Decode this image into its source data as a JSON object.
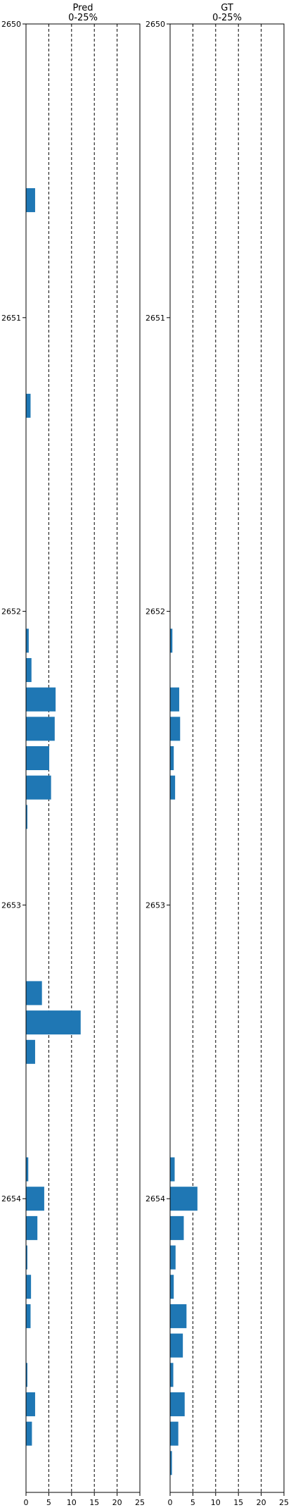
{
  "chart_data": [
    {
      "type": "bar",
      "orientation": "horizontal",
      "title": "Pred\n0-25%",
      "x_ticks": [
        0,
        5,
        10,
        15,
        20,
        25
      ],
      "xlim": [
        0,
        25
      ],
      "y_ticks": [
        2650,
        2651,
        2652,
        2653,
        2654
      ],
      "ylim": [
        2655,
        2650
      ],
      "grid": "vertical dashed lines at 5, 10, 15, 20",
      "bar_color": "#1f77b4",
      "bars": [
        {
          "depth": 2650.6,
          "value": 2.0
        },
        {
          "depth": 2651.3,
          "value": 1.0
        },
        {
          "depth": 2652.1,
          "value": 0.6
        },
        {
          "depth": 2652.2,
          "value": 1.2
        },
        {
          "depth": 2652.3,
          "value": 6.5
        },
        {
          "depth": 2652.4,
          "value": 6.3
        },
        {
          "depth": 2652.5,
          "value": 5.1
        },
        {
          "depth": 2652.6,
          "value": 5.5
        },
        {
          "depth": 2652.7,
          "value": 0.3
        },
        {
          "depth": 2653.3,
          "value": 3.5
        },
        {
          "depth": 2653.4,
          "value": 12.0
        },
        {
          "depth": 2653.5,
          "value": 2.0
        },
        {
          "depth": 2653.9,
          "value": 0.5
        },
        {
          "depth": 2654.0,
          "value": 4.0
        },
        {
          "depth": 2654.1,
          "value": 2.5
        },
        {
          "depth": 2654.2,
          "value": 0.3
        },
        {
          "depth": 2654.3,
          "value": 1.1
        },
        {
          "depth": 2654.4,
          "value": 1.0
        },
        {
          "depth": 2654.6,
          "value": 0.3
        },
        {
          "depth": 2654.7,
          "value": 2.0
        },
        {
          "depth": 2654.8,
          "value": 1.3
        }
      ]
    },
    {
      "type": "bar",
      "orientation": "horizontal",
      "title": "GT\n0-25%",
      "x_ticks": [
        0,
        5,
        10,
        15,
        20,
        25
      ],
      "xlim": [
        0,
        25
      ],
      "y_ticks": [
        2650,
        2651,
        2652,
        2653,
        2654
      ],
      "ylim": [
        2655,
        2650
      ],
      "grid": "vertical dashed lines at 5, 10, 15, 20",
      "bar_color": "#1f77b4",
      "bars": [
        {
          "depth": 2652.1,
          "value": 0.5
        },
        {
          "depth": 2652.3,
          "value": 2.0
        },
        {
          "depth": 2652.4,
          "value": 2.2
        },
        {
          "depth": 2652.5,
          "value": 0.8
        },
        {
          "depth": 2652.6,
          "value": 1.1
        },
        {
          "depth": 2653.9,
          "value": 1.0
        },
        {
          "depth": 2654.0,
          "value": 6.0
        },
        {
          "depth": 2654.1,
          "value": 3.0
        },
        {
          "depth": 2654.2,
          "value": 1.2
        },
        {
          "depth": 2654.3,
          "value": 0.8
        },
        {
          "depth": 2654.4,
          "value": 3.6
        },
        {
          "depth": 2654.5,
          "value": 2.8
        },
        {
          "depth": 2654.6,
          "value": 0.7
        },
        {
          "depth": 2654.7,
          "value": 3.2
        },
        {
          "depth": 2654.8,
          "value": 1.8
        },
        {
          "depth": 2654.9,
          "value": 0.4
        }
      ]
    }
  ]
}
